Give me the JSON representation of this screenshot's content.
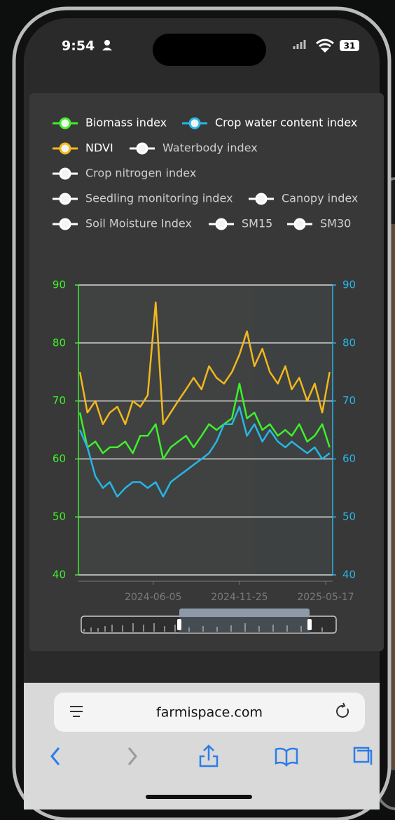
{
  "status_bar": {
    "time": "9:54",
    "battery": "31"
  },
  "chart_data": {
    "type": "line",
    "x": [
      "2024-01-10",
      "2024-01-25",
      "2024-02-10",
      "2024-02-25",
      "2024-03-10",
      "2024-03-25",
      "2024-04-10",
      "2024-04-25",
      "2024-05-10",
      "2024-05-25",
      "2024-06-10",
      "2024-06-25",
      "2024-07-10",
      "2024-07-25",
      "2024-08-10",
      "2024-08-25",
      "2024-09-10",
      "2024-09-25",
      "2024-10-10",
      "2024-10-25",
      "2024-11-10",
      "2024-11-25",
      "2024-12-10",
      "2024-12-25",
      "2025-01-10",
      "2025-01-25",
      "2025-02-10",
      "2025-02-25",
      "2025-03-10",
      "2025-03-25",
      "2025-04-10",
      "2025-04-25",
      "2025-05-10",
      "2025-05-25"
    ],
    "xlim": [
      "2024-01-07",
      "2025-05-31"
    ],
    "xticks": [
      "2024-06-05",
      "2024-11-25",
      "2025-05-17"
    ],
    "ylim": [
      40,
      90
    ],
    "yticks": [
      40,
      50,
      60,
      70,
      80,
      90
    ],
    "y2lim": [
      40,
      90
    ],
    "y2ticks": [
      40,
      50,
      60,
      70,
      80,
      90
    ],
    "grid": true,
    "series": [
      {
        "name": "Biomass index",
        "color": "#3ef02a",
        "values": [
          68,
          62,
          63,
          61,
          62,
          62,
          63,
          61,
          64,
          64,
          66,
          60,
          62,
          63,
          64,
          62,
          64,
          66,
          65,
          66,
          67,
          73,
          67,
          68,
          65,
          66,
          64,
          65,
          64,
          66,
          63,
          64,
          66,
          62
        ]
      },
      {
        "name": "Crop water content index",
        "color": "#27b6e6",
        "axis": "y2",
        "values": [
          65,
          62,
          57,
          55,
          56,
          53.5,
          55,
          56,
          56,
          55,
          56,
          53.5,
          56,
          57,
          58,
          59,
          60,
          61,
          63,
          66,
          66,
          69,
          64,
          66,
          63,
          65,
          63,
          62,
          63,
          62,
          61,
          62,
          60,
          61
        ]
      },
      {
        "name": "NDVI",
        "color": "#f2b81c",
        "values": [
          75,
          68,
          70,
          66,
          68,
          69,
          66,
          70,
          69,
          71,
          87,
          66,
          68,
          70,
          72,
          74,
          72,
          76,
          74,
          73,
          75,
          78,
          82,
          76,
          79,
          75,
          73,
          76,
          72,
          74,
          70,
          73,
          68,
          75
        ]
      }
    ],
    "hidden_series": [
      {
        "name": "Waterbody index",
        "color": "#ffffff"
      },
      {
        "name": "Crop nitrogen index",
        "color": "#ffffff"
      },
      {
        "name": "Seedling monitoring index",
        "color": "#ffffff"
      },
      {
        "name": "Canopy index",
        "color": "#ffffff"
      },
      {
        "name": "Soil Moisture Index",
        "color": "#ffffff"
      },
      {
        "name": "SM15",
        "color": "#ffffff"
      },
      {
        "name": "SM30",
        "color": "#ffffff"
      }
    ]
  },
  "browser": {
    "url": "farmispace.com"
  }
}
